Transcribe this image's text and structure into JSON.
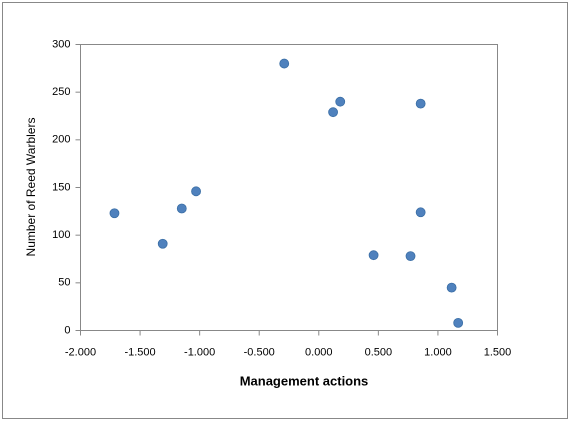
{
  "chart_data": {
    "type": "scatter",
    "x_label": "Management actions",
    "y_label": "Number of Reed Warblers",
    "color": "#4f81bd",
    "x": [
      -1.715,
      -1.31,
      -1.15,
      -1.03,
      -0.29,
      0.12,
      0.18,
      0.855,
      0.855,
      0.46,
      0.77,
      1.115,
      1.17
    ],
    "values": [
      123,
      91,
      128,
      146,
      280,
      229,
      240,
      238,
      124,
      79,
      78,
      45,
      8
    ],
    "xlim": [
      -2,
      1.5
    ],
    "xticks": [
      {
        "value": -2,
        "label": "-2.000"
      },
      {
        "value": -1.5,
        "label": "-1.500"
      },
      {
        "value": -1,
        "label": "-1.000"
      },
      {
        "value": -0.5,
        "label": "-0.500"
      },
      {
        "value": 0,
        "label": "0.000"
      },
      {
        "value": 0.5,
        "label": "0.500"
      },
      {
        "value": 1,
        "label": "1.000"
      },
      {
        "value": 1.5,
        "label": "1.500"
      }
    ],
    "ylim": [
      0,
      300
    ],
    "yticks": [
      0,
      50,
      100,
      150,
      200,
      250,
      300
    ]
  }
}
